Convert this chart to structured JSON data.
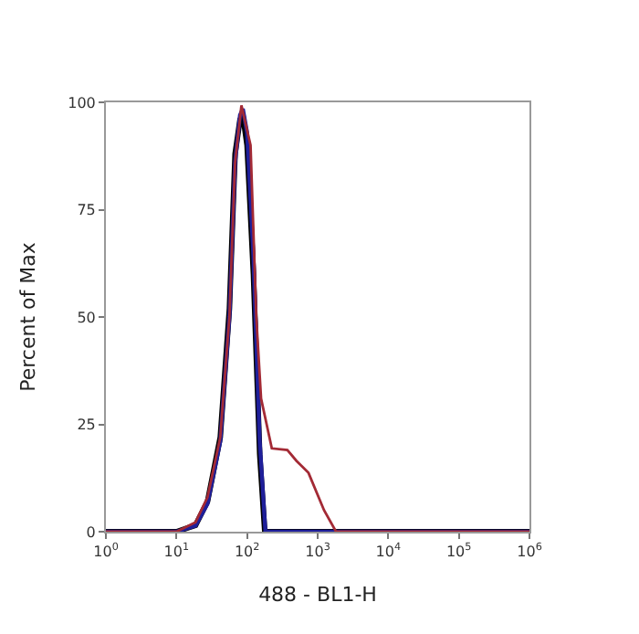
{
  "chart_data": {
    "type": "line",
    "xlabel": "488 - BL1-H",
    "ylabel": "Percent of Max",
    "log": "x",
    "marker": "none",
    "line_style": "solid",
    "xlim": [
      1,
      1000000
    ],
    "ylim": [
      0,
      100
    ],
    "xticks": [
      {
        "value": 1,
        "label": "10$^{0}$"
      },
      {
        "value": 10,
        "label": "10$^{1}$"
      },
      {
        "value": 100,
        "label": "10$^{2}$"
      },
      {
        "value": 1000,
        "label": "10$^{3}$"
      },
      {
        "value": 10000,
        "label": "10$^{4}$"
      },
      {
        "value": 100000,
        "label": "10$^{5}$"
      },
      {
        "value": 1000000,
        "label": "10$^{6}$"
      }
    ],
    "yticks": [
      0,
      25,
      50,
      75,
      100
    ],
    "series": [
      {
        "color": "#000000",
        "x": [
          1,
          10,
          18.6,
          27.5,
          41.7,
          56.2,
          67.6,
          79.4,
          87.1,
          100,
          123,
          151,
          178,
          1000000
        ],
        "values": [
          0,
          0,
          1.5,
          7,
          22,
          52,
          88,
          96,
          97,
          90,
          60,
          18,
          0,
          0
        ]
      },
      {
        "color": "#1f1f9a",
        "x": [
          1,
          10,
          18.6,
          27.5,
          41.7,
          56.2,
          67.6,
          79.4,
          87.1,
          100,
          123,
          151,
          182,
          1000000
        ],
        "values": [
          0,
          0,
          1.4,
          6.5,
          21,
          50,
          86,
          97,
          98.5,
          93,
          64,
          21,
          0,
          0
        ]
      },
      {
        "color": "#a32a35",
        "x": [
          1,
          10,
          18.6,
          27.5,
          41.7,
          56.2,
          67.6,
          83.2,
          112,
          135,
          158,
          224,
          372,
          501,
          741,
          1230,
          1820,
          1000000
        ],
        "values": [
          0,
          0,
          2.2,
          8,
          22,
          50,
          86,
          99.3,
          90,
          50,
          31,
          19.4,
          19,
          16.5,
          13.7,
          5,
          0,
          0
        ]
      }
    ]
  }
}
